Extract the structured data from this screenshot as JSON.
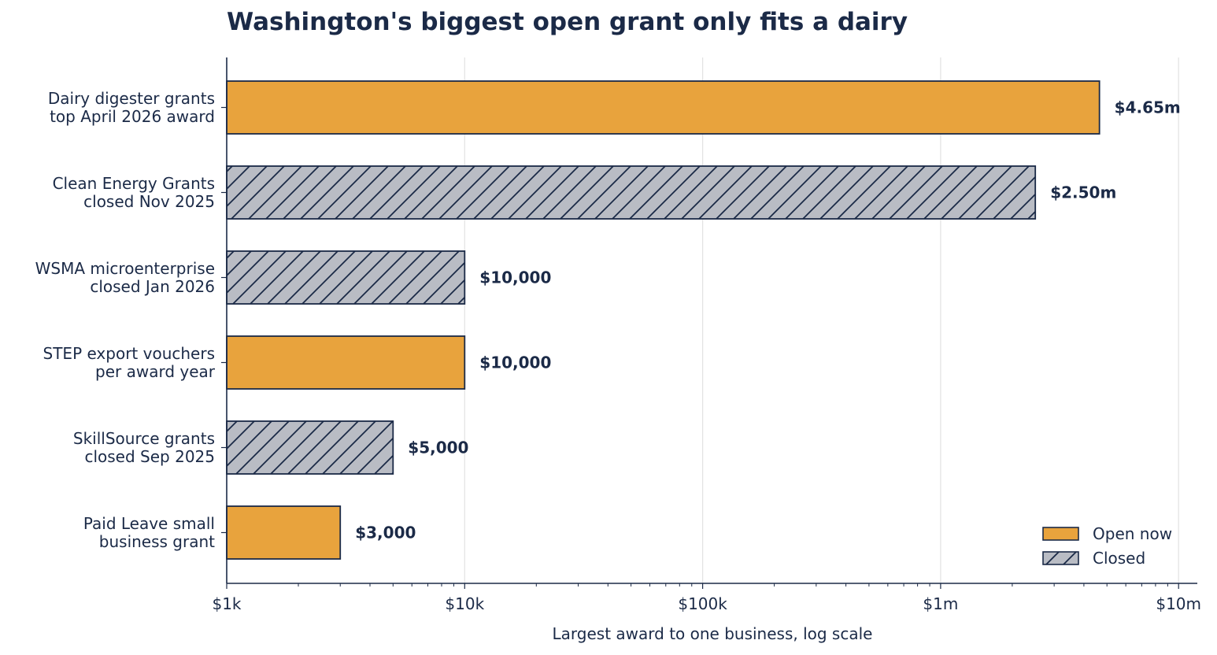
{
  "chart_data": {
    "type": "bar",
    "orientation": "horizontal",
    "title": "Washington's biggest open grant only fits a dairy",
    "xlabel": "Largest award to one business, log scale",
    "ylabel": "",
    "x_scale": "log",
    "xlim": [
      1000,
      12000000
    ],
    "grid": "vertical",
    "x_ticks": [
      {
        "value": 1000,
        "label": "$1k"
      },
      {
        "value": 10000,
        "label": "$10k"
      },
      {
        "value": 100000,
        "label": "$100k"
      },
      {
        "value": 1000000,
        "label": "$1m"
      },
      {
        "value": 10000000,
        "label": "$10m"
      }
    ],
    "bars": [
      {
        "label_lines": [
          "Dairy digester grants",
          "top April 2026 award"
        ],
        "value": 4650000,
        "value_label": "$4.65m",
        "status": "open"
      },
      {
        "label_lines": [
          "Clean Energy Grants",
          "closed Nov 2025"
        ],
        "value": 2500000,
        "value_label": "$2.50m",
        "status": "closed"
      },
      {
        "label_lines": [
          "WSMA microenterprise",
          "closed Jan 2026"
        ],
        "value": 10000,
        "value_label": "$10,000",
        "status": "closed"
      },
      {
        "label_lines": [
          "STEP export vouchers",
          "per award year"
        ],
        "value": 10000,
        "value_label": "$10,000",
        "status": "open"
      },
      {
        "label_lines": [
          "SkillSource grants",
          "closed Sep 2025"
        ],
        "value": 5000,
        "value_label": "$5,000",
        "status": "closed"
      },
      {
        "label_lines": [
          "Paid Leave small",
          "business grant"
        ],
        "value": 3000,
        "value_label": "$3,000",
        "status": "open"
      }
    ],
    "legend": {
      "position": "bottom-right",
      "items": [
        {
          "key": "open",
          "label": "Open now"
        },
        {
          "key": "closed",
          "label": "Closed"
        }
      ]
    },
    "colors": {
      "open": "#e8a33d",
      "closed": "#b9bcc4",
      "edge": "#1b2a47",
      "grid": "#e2e2e2",
      "text": "#1b2a47"
    }
  }
}
